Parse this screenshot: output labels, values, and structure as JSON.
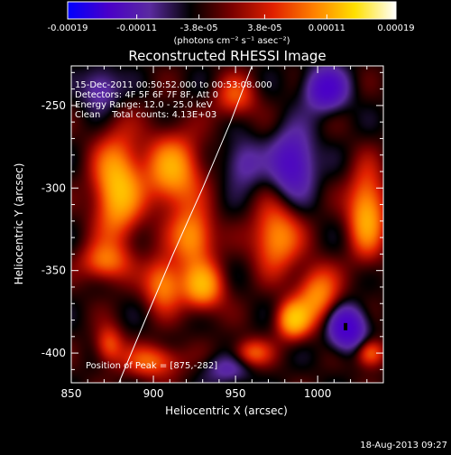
{
  "colorbar": {
    "tick_labels": [
      "-0.00019",
      "-0.00011",
      "-3.8e-05",
      "3.8e-05",
      "0.00011",
      "0.00019"
    ],
    "tick_values": [
      -0.00019,
      -0.00011,
      -3.8e-05,
      3.8e-05,
      0.00011,
      0.00019
    ],
    "range": [
      -0.00019,
      0.00019
    ],
    "units": "(photons cm⁻² s⁻¹ asec⁻²)",
    "colors": [
      "#0000ff",
      "#4a00c8",
      "#5a2aa0",
      "#000000",
      "#7a0000",
      "#e02000",
      "#ff8000",
      "#ffe000",
      "#ffffff"
    ]
  },
  "chart_data": {
    "type": "heatmap",
    "title": "Reconstructed RHESSI Image",
    "xlabel": "Heliocentric X (arcsec)",
    "ylabel": "Heliocentric Y (arcsec)",
    "xlim": [
      850,
      1040
    ],
    "ylim": [
      -418,
      -226
    ],
    "x_ticks": [
      850,
      900,
      950,
      1000
    ],
    "y_ticks": [
      -250,
      -300,
      -350,
      -400
    ],
    "x_tick_labels": [
      "850",
      "900",
      "950",
      "1000"
    ],
    "y_tick_labels": [
      "-250",
      "-300",
      "-350",
      "-400"
    ],
    "info_lines": [
      "15-Dec-2011 00:50:52.000 to 00:53:08.000",
      "Detectors: 4F 5F 6F 7F 8F, Att 0",
      "Energy Range: 12.0 - 25.0 keV",
      "Clean    Total counts: 4.13E+03"
    ],
    "peak_label": "Position of Peak = [875,-282]",
    "peak": [
      875,
      -282
    ],
    "limb_curve": [
      [
        879,
        -418
      ],
      [
        895,
        -380
      ],
      [
        912,
        -340
      ],
      [
        930,
        -300
      ],
      [
        947,
        -260
      ],
      [
        960,
        -226
      ]
    ],
    "sources": [
      {
        "x": 878,
        "y": -300,
        "amp": 1.0,
        "sx": 10,
        "sy": 22
      },
      {
        "x": 912,
        "y": -290,
        "amp": 0.85,
        "sx": 12,
        "sy": 16
      },
      {
        "x": 924,
        "y": -330,
        "amp": 0.8,
        "sx": 9,
        "sy": 12
      },
      {
        "x": 906,
        "y": -358,
        "amp": 0.75,
        "sx": 8,
        "sy": 11
      },
      {
        "x": 930,
        "y": -360,
        "amp": 0.85,
        "sx": 9,
        "sy": 10
      },
      {
        "x": 975,
        "y": -330,
        "amp": 0.8,
        "sx": 10,
        "sy": 14
      },
      {
        "x": 1000,
        "y": -365,
        "amp": 0.75,
        "sx": 9,
        "sy": 12
      },
      {
        "x": 1030,
        "y": -315,
        "amp": 0.9,
        "sx": 8,
        "sy": 18
      },
      {
        "x": 985,
        "y": -380,
        "amp": 0.9,
        "sx": 7,
        "sy": 8
      },
      {
        "x": 873,
        "y": -395,
        "amp": 0.55,
        "sx": 6,
        "sy": 8
      },
      {
        "x": 870,
        "y": -345,
        "amp": 0.6,
        "sx": 10,
        "sy": 8
      },
      {
        "x": 950,
        "y": -245,
        "amp": 0.5,
        "sx": 9,
        "sy": 9
      },
      {
        "x": 900,
        "y": -405,
        "amp": 0.6,
        "sx": 12,
        "sy": 7
      },
      {
        "x": 1032,
        "y": -400,
        "amp": 0.7,
        "sx": 6,
        "sy": 6
      },
      {
        "x": 960,
        "y": -400,
        "amp": 0.55,
        "sx": 8,
        "sy": 6
      },
      {
        "x": 1005,
        "y": -240,
        "amp": -0.85,
        "sx": 9,
        "sy": 9
      },
      {
        "x": 985,
        "y": -285,
        "amp": -0.8,
        "sx": 9,
        "sy": 14
      },
      {
        "x": 1018,
        "y": -385,
        "amp": -1.0,
        "sx": 8,
        "sy": 9
      },
      {
        "x": 955,
        "y": -285,
        "amp": -0.45,
        "sx": 8,
        "sy": 10
      },
      {
        "x": 868,
        "y": -240,
        "amp": -0.5,
        "sx": 8,
        "sy": 9
      },
      {
        "x": 945,
        "y": -410,
        "amp": -0.4,
        "sx": 10,
        "sy": 6
      }
    ]
  },
  "timestamp": "18-Aug-2013 09:27"
}
